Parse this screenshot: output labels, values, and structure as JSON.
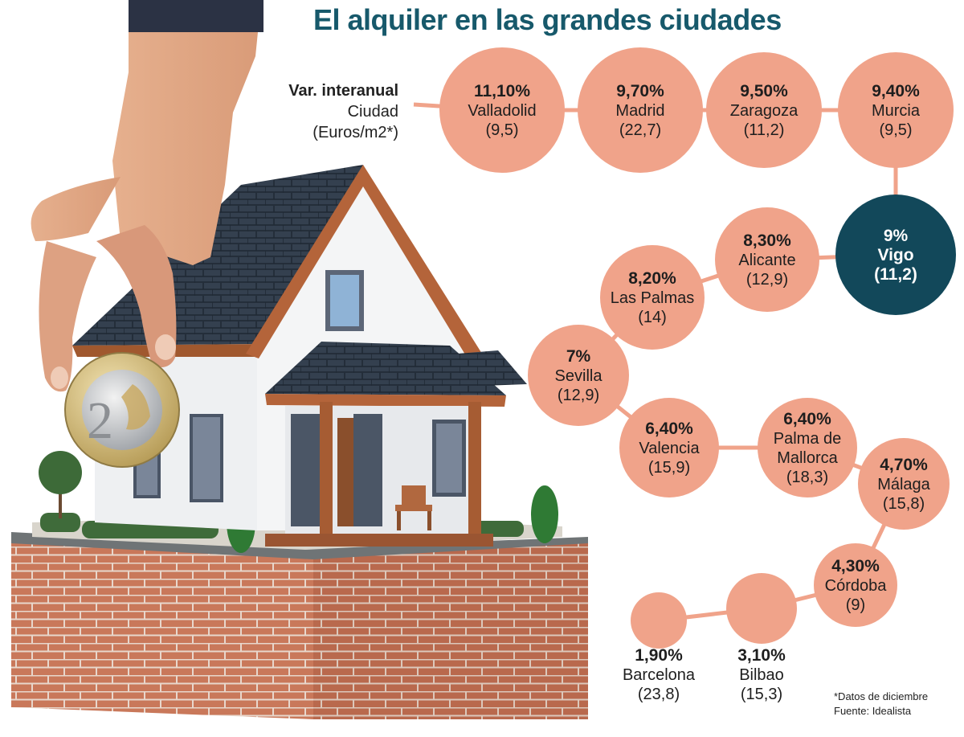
{
  "title": "El alquiler en las grandes ciudades",
  "legend": {
    "line1": "Var. interanual",
    "line2": "Ciudad",
    "line3": "(Euros/m2*)"
  },
  "footnote": {
    "line1": "*Datos de diciembre",
    "line2": "Fuente: Idealista"
  },
  "colors": {
    "bubble": "#f0a38a",
    "highlight": "#12485a",
    "connector": "#f0a38a",
    "title": "#17596b"
  },
  "chart_data": {
    "type": "bubble-chain",
    "title": "El alquiler en las grandes ciudades",
    "value_label": "Var. interanual",
    "secondary_label": "Euros/m2",
    "series": [
      {
        "city": "Valladolid",
        "pct": "11,10%",
        "pct_value": 11.1,
        "price": "(9,5)",
        "price_value": 9.5
      },
      {
        "city": "Madrid",
        "pct": "9,70%",
        "pct_value": 9.7,
        "price": "(22,7)",
        "price_value": 22.7
      },
      {
        "city": "Zaragoza",
        "pct": "9,50%",
        "pct_value": 9.5,
        "price": "(11,2)",
        "price_value": 11.2
      },
      {
        "city": "Murcia",
        "pct": "9,40%",
        "pct_value": 9.4,
        "price": "(9,5)",
        "price_value": 9.5
      },
      {
        "city": "Vigo",
        "pct": "9%",
        "pct_value": 9.0,
        "price": "(11,2)",
        "price_value": 11.2,
        "highlight": true
      },
      {
        "city": "Alicante",
        "pct": "8,30%",
        "pct_value": 8.3,
        "price": "(12,9)",
        "price_value": 12.9
      },
      {
        "city": "Las Palmas",
        "pct": "8,20%",
        "pct_value": 8.2,
        "price": "(14)",
        "price_value": 14
      },
      {
        "city": "Sevilla",
        "pct": "7%",
        "pct_value": 7.0,
        "price": "(12,9)",
        "price_value": 12.9
      },
      {
        "city": "Valencia",
        "pct": "6,40%",
        "pct_value": 6.4,
        "price": "(15,9)",
        "price_value": 15.9
      },
      {
        "city": "Palma de\nMallorca",
        "pct": "6,40%",
        "pct_value": 6.4,
        "price": "(18,3)",
        "price_value": 18.3
      },
      {
        "city": "Málaga",
        "pct": "4,70%",
        "pct_value": 4.7,
        "price": "(15,8)",
        "price_value": 15.8
      },
      {
        "city": "Córdoba",
        "pct": "4,30%",
        "pct_value": 4.3,
        "price": "(9)",
        "price_value": 9
      },
      {
        "city": "Bilbao",
        "pct": "3,10%",
        "pct_value": 3.1,
        "price": "(15,3)",
        "price_value": 15.3
      },
      {
        "city": "Barcelona",
        "pct": "1,90%",
        "pct_value": 1.9,
        "price": "(23,8)",
        "price_value": 23.8
      }
    ]
  }
}
